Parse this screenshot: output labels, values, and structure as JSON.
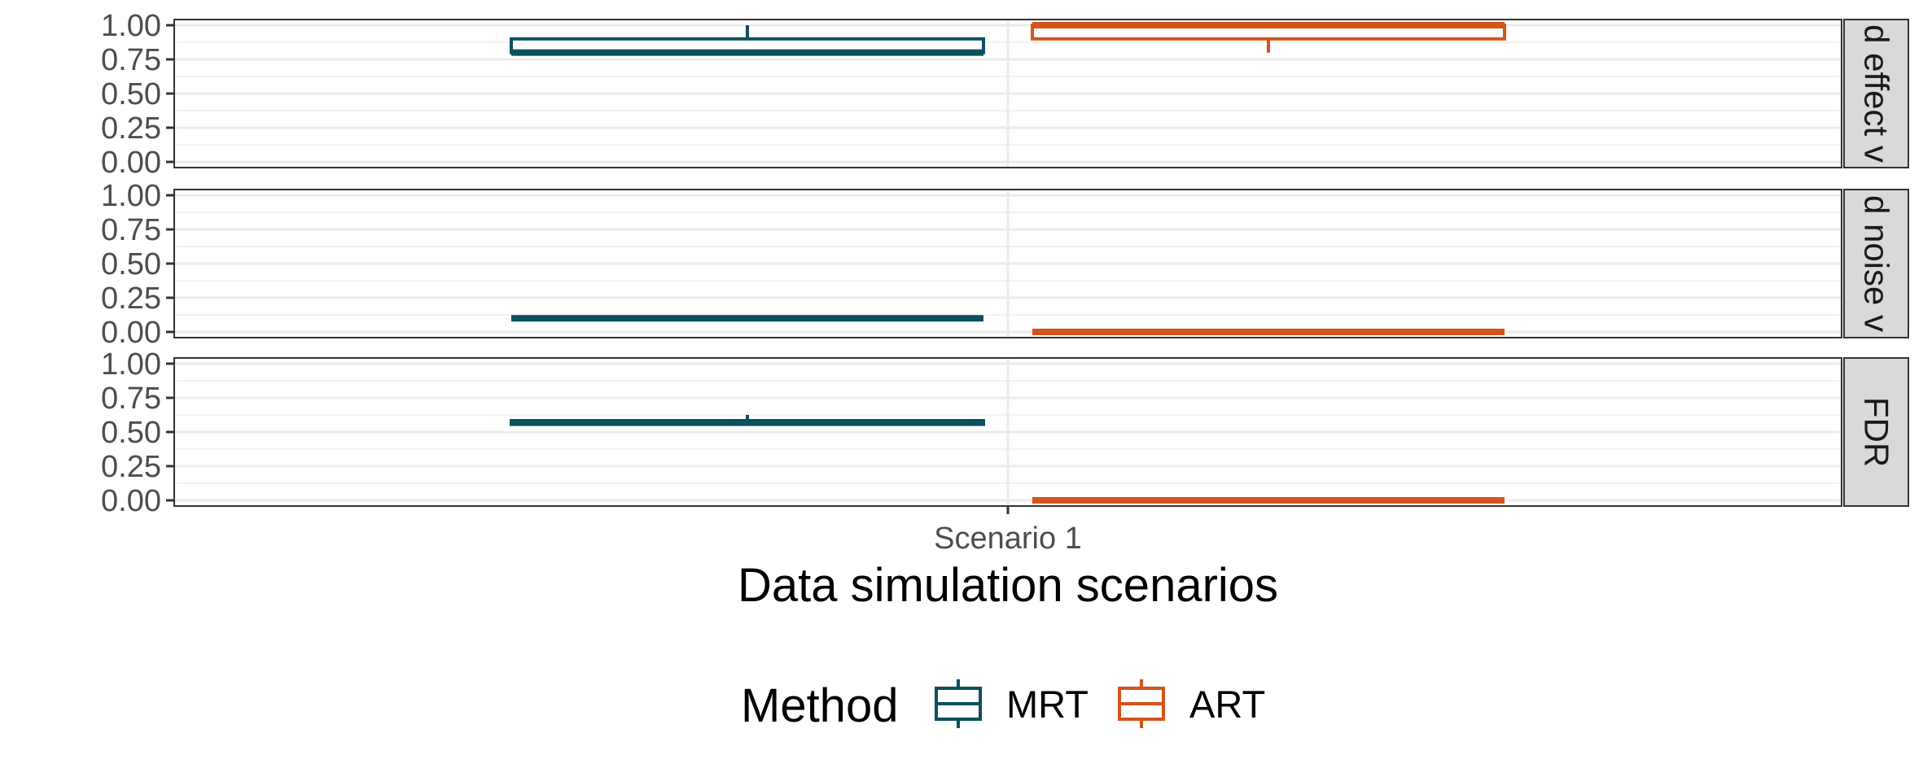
{
  "chart_data": {
    "type": "boxplot",
    "xlabel": "Data simulation scenarios",
    "categories": [
      "Scenario 1"
    ],
    "ylim": [
      0,
      1
    ],
    "y_ticks": [
      "0.00",
      "0.25",
      "0.50",
      "0.75",
      "1.00"
    ],
    "grid": true,
    "legend": {
      "title": "Method",
      "position": "bottom",
      "entries": [
        {
          "name": "MRT",
          "color": "#0c4f5e"
        },
        {
          "name": "ART",
          "color": "#d4541c"
        }
      ]
    },
    "panels": [
      {
        "strip_label": "d effect v",
        "boxes": [
          {
            "method": "MRT",
            "category": "Scenario 1",
            "min": 0.8,
            "q1": 0.8,
            "median": 0.8,
            "q3": 0.9,
            "max": 1.0
          },
          {
            "method": "ART",
            "category": "Scenario 1",
            "min": 0.8,
            "q1": 0.9,
            "median": 1.0,
            "q3": 1.0,
            "max": 1.0
          }
        ]
      },
      {
        "strip_label": "d noise v",
        "boxes": [
          {
            "method": "MRT",
            "category": "Scenario 1",
            "min": 0.1,
            "q1": 0.1,
            "median": 0.1,
            "q3": 0.1,
            "max": 0.1
          },
          {
            "method": "ART",
            "category": "Scenario 1",
            "min": 0.0,
            "q1": 0.0,
            "median": 0.0,
            "q3": 0.0,
            "max": 0.0
          }
        ]
      },
      {
        "strip_label": "FDR",
        "boxes": [
          {
            "method": "MRT",
            "category": "Scenario 1",
            "min": 0.55,
            "q1": 0.556,
            "median": 0.571,
            "q3": 0.583,
            "max": 0.625
          },
          {
            "method": "ART",
            "category": "Scenario 1",
            "min": 0.0,
            "q1": 0.0,
            "median": 0.0,
            "q3": 0.0,
            "max": 0.0
          }
        ]
      }
    ]
  }
}
